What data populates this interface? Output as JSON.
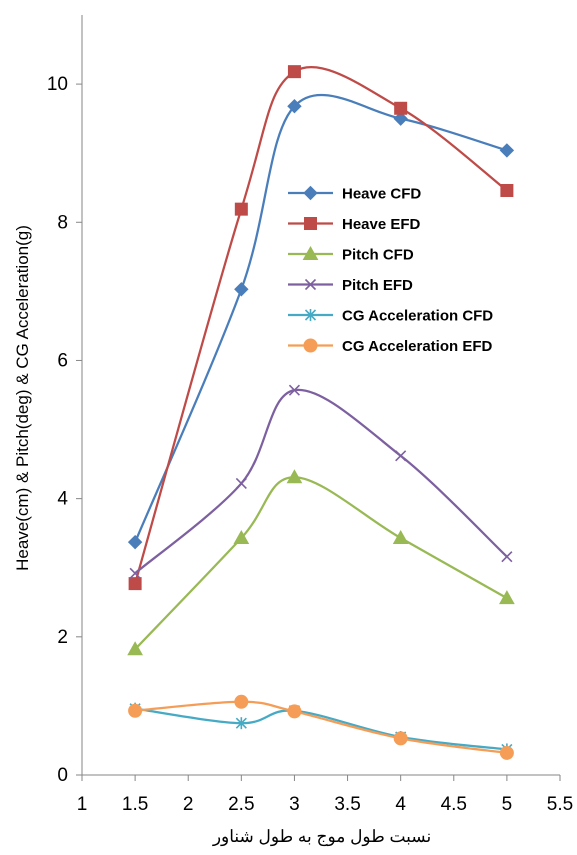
{
  "chart_data": {
    "type": "line",
    "title": "",
    "xlabel": "نسبت طول موج به طول شناور",
    "ylabel": "Heave(cm) & Pitch(deg) & CG Acceleration(g)",
    "xlim": [
      1,
      5.5
    ],
    "ylim": [
      0,
      11
    ],
    "x_ticks": [
      "1",
      "1.5",
      "2",
      "2.5",
      "3",
      "3.5",
      "4",
      "4.5",
      "5",
      "5.5"
    ],
    "y_ticks": [
      "0",
      "2",
      "4",
      "6",
      "8",
      "10"
    ],
    "grid": false,
    "smooth": true,
    "legend_position": "center",
    "x": [
      1.5,
      2.5,
      3,
      4,
      5
    ],
    "series": [
      {
        "name": "Heave CFD",
        "values": [
          3.37,
          7.03,
          9.68,
          9.5,
          9.04
        ],
        "color": "#4a7ebb",
        "marker": "diamond"
      },
      {
        "name": "Heave EFD",
        "values": [
          2.77,
          8.19,
          10.18,
          9.65,
          8.46
        ],
        "color": "#be4b48",
        "marker": "square"
      },
      {
        "name": "Pitch CFD",
        "values": [
          1.82,
          3.43,
          4.31,
          3.43,
          2.56
        ],
        "color": "#98b954",
        "marker": "triangle"
      },
      {
        "name": "Pitch EFD",
        "values": [
          2.92,
          4.22,
          5.57,
          4.62,
          3.16
        ],
        "color": "#7d60a0",
        "marker": "x"
      },
      {
        "name": "CG Acceleration CFD",
        "values": [
          0.96,
          0.75,
          0.93,
          0.55,
          0.37
        ],
        "color": "#46aac5",
        "marker": "star"
      },
      {
        "name": "CG Acceleration EFD",
        "values": [
          0.93,
          1.06,
          0.92,
          0.53,
          0.32
        ],
        "color": "#f59d56",
        "marker": "circle"
      }
    ]
  }
}
